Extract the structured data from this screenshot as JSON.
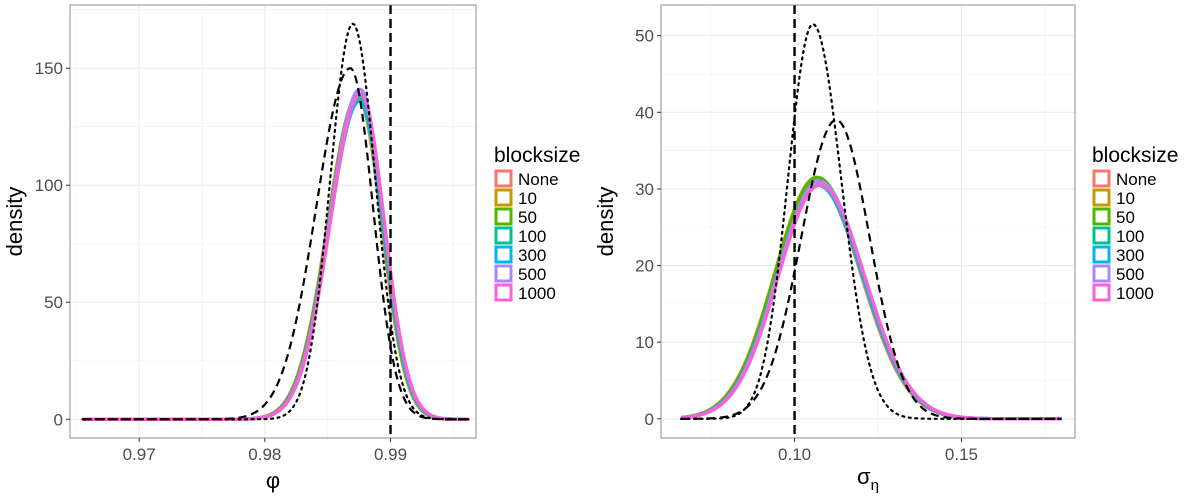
{
  "legend": {
    "title": "blocksize",
    "entries": [
      {
        "label": "None",
        "color": "#F8766D"
      },
      {
        "label": "10",
        "color": "#C49A00"
      },
      {
        "label": "50",
        "color": "#53B400"
      },
      {
        "label": "100",
        "color": "#00C094"
      },
      {
        "label": "300",
        "color": "#00B6EB"
      },
      {
        "label": "500",
        "color": "#A58AFF"
      },
      {
        "label": "1000",
        "color": "#FB61D7"
      }
    ]
  },
  "chart_data": [
    {
      "type": "line",
      "panel": "left",
      "xlabel": "φ",
      "ylabel": "density",
      "xlim": [
        0.9645,
        0.9968
      ],
      "ylim": [
        -8,
        177
      ],
      "xticks": [
        0.97,
        0.98,
        0.99
      ],
      "xtick_labels": [
        "0.97",
        "0.98",
        "0.99"
      ],
      "yticks": [
        0,
        50,
        100,
        150
      ],
      "ytick_labels": [
        "0",
        "50",
        "100",
        "150"
      ],
      "vline": 0.99,
      "posterior": {
        "mean": 0.9875,
        "sd_left": 0.0024,
        "sd_right": 0.0019,
        "peak": 138,
        "peak_variation": [
          138,
          137,
          139,
          138,
          136,
          141,
          139
        ],
        "x_range": [
          0.9655,
          0.9962
        ]
      },
      "reference_curves": [
        {
          "name": "dotted",
          "style": "dotted",
          "mean": 0.987,
          "sd_left": 0.0018,
          "sd_right": 0.0018,
          "peak": 169,
          "x_range": [
            0.9655,
            0.9962
          ]
        },
        {
          "name": "dashed",
          "style": "dashed",
          "mean": 0.9868,
          "sd_left": 0.0027,
          "sd_right": 0.0018,
          "peak": 150,
          "x_range": [
            0.9655,
            0.9962
          ]
        }
      ]
    },
    {
      "type": "line",
      "panel": "right",
      "xlabel": "σ",
      "xlabel_sub": "η",
      "ylabel": "density",
      "xlim": [
        0.06,
        0.184
      ],
      "ylim": [
        -2.5,
        54
      ],
      "xticks": [
        0.1,
        0.15
      ],
      "xtick_labels": [
        "0.10",
        "0.15"
      ],
      "yticks": [
        0,
        10,
        20,
        30,
        40,
        50
      ],
      "ytick_labels": [
        "0",
        "10",
        "20",
        "30",
        "40",
        "50"
      ],
      "vline": 0.1,
      "posterior": {
        "mean": 0.107,
        "sd_left": 0.0125,
        "sd_right": 0.0135,
        "peak": 31,
        "peak_variation": [
          31,
          31.5,
          31.5,
          30.5,
          30.5,
          31,
          30.5
        ],
        "x_range": [
          0.066,
          0.18
        ]
      },
      "reference_curves": [
        {
          "name": "dotted",
          "style": "dotted",
          "mean": 0.1055,
          "sd_left": 0.0075,
          "sd_right": 0.0085,
          "peak": 51.5,
          "x_range": [
            0.066,
            0.18
          ]
        },
        {
          "name": "dashed",
          "style": "dashed",
          "mean": 0.1125,
          "sd_left": 0.0105,
          "sd_right": 0.01,
          "peak": 39,
          "x_range": [
            0.066,
            0.18
          ]
        }
      ]
    }
  ]
}
